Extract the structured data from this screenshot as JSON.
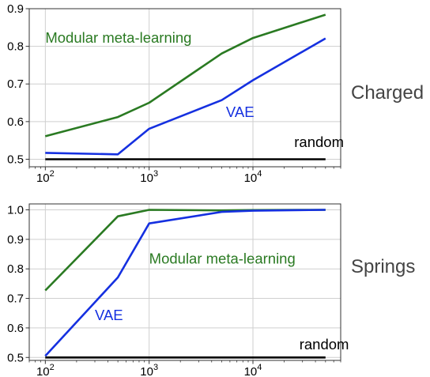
{
  "chart_data": [
    {
      "type": "line",
      "panel_label": "Charged",
      "xscale": "log",
      "xlim": [
        70,
        70000
      ],
      "ylim": [
        0.48,
        0.9
      ],
      "grid": true,
      "xticks": [
        100,
        1000,
        10000
      ],
      "xtick_labels": [
        {
          "base": "10",
          "exp": "2"
        },
        {
          "base": "10",
          "exp": "3"
        },
        {
          "base": "10",
          "exp": "4"
        }
      ],
      "yticks": [
        0.5,
        0.6,
        0.7,
        0.8,
        0.9
      ],
      "ytick_labels": [
        "0.5",
        "0.6",
        "0.7",
        "0.8",
        "0.9"
      ],
      "series": [
        {
          "name": "Modular meta-learning",
          "color": "#2a7a22",
          "x": [
            100,
            500,
            1000,
            5000,
            10000,
            50000
          ],
          "y": [
            0.561,
            0.612,
            0.65,
            0.781,
            0.822,
            0.884
          ],
          "label_at": [
            100,
            0.81
          ]
        },
        {
          "name": "VAE",
          "color": "#1530e0",
          "x": [
            100,
            500,
            1000,
            5000,
            10000,
            50000
          ],
          "y": [
            0.517,
            0.513,
            0.581,
            0.657,
            0.71,
            0.821
          ],
          "label_at": [
            5500,
            0.612
          ]
        },
        {
          "name": "random",
          "color": "#000000",
          "x": [
            100,
            50000
          ],
          "y": [
            0.5,
            0.5
          ],
          "label_at": [
            25000,
            0.532
          ]
        }
      ]
    },
    {
      "type": "line",
      "panel_label": "Springs",
      "xscale": "log",
      "xlim": [
        70,
        70000
      ],
      "ylim": [
        0.49,
        1.02
      ],
      "grid": true,
      "xticks": [
        100,
        1000,
        10000
      ],
      "xtick_labels": [
        {
          "base": "10",
          "exp": "2"
        },
        {
          "base": "10",
          "exp": "3"
        },
        {
          "base": "10",
          "exp": "4"
        }
      ],
      "yticks": [
        0.5,
        0.6,
        0.7,
        0.8,
        0.9,
        1.0
      ],
      "ytick_labels": [
        "0.5",
        "0.6",
        "0.7",
        "0.8",
        "0.9",
        "1.0"
      ],
      "series": [
        {
          "name": "Modular meta-learning",
          "color": "#2a7a22",
          "x": [
            100,
            500,
            1000,
            5000,
            10000,
            50000
          ],
          "y": [
            0.727,
            0.978,
            1.0,
            0.998,
            0.999,
            1.0
          ],
          "label_at": [
            1000,
            0.818
          ]
        },
        {
          "name": "VAE",
          "color": "#1530e0",
          "x": [
            100,
            500,
            1000,
            5000,
            10000,
            50000
          ],
          "y": [
            0.505,
            0.771,
            0.954,
            0.993,
            0.997,
            1.0
          ],
          "label_at": [
            300,
            0.626
          ]
        },
        {
          "name": "random",
          "color": "#000000",
          "x": [
            100,
            50000
          ],
          "y": [
            0.5,
            0.5
          ],
          "label_at": [
            28000,
            0.528
          ]
        }
      ]
    }
  ]
}
